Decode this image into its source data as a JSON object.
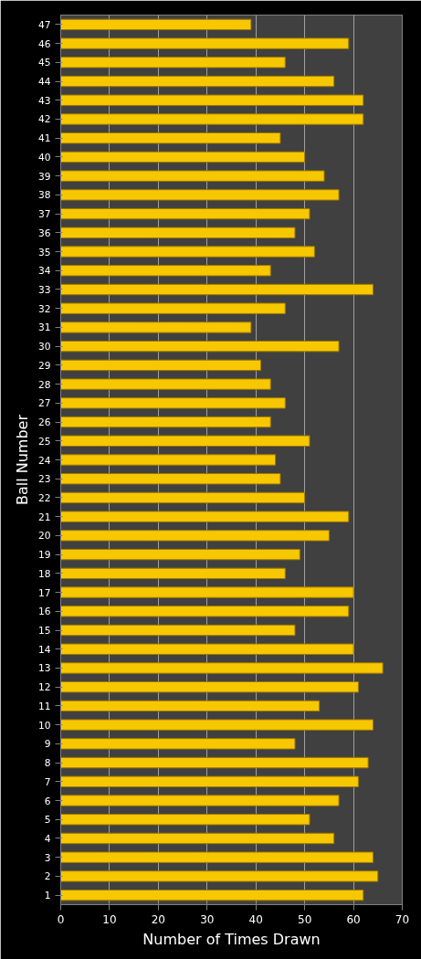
{
  "chart_data": {
    "type": "bar",
    "orientation": "horizontal",
    "xlabel": "Number of Times Drawn",
    "ylabel": "Ball Number",
    "categories": [
      "47",
      "46",
      "45",
      "44",
      "43",
      "42",
      "41",
      "40",
      "39",
      "38",
      "37",
      "36",
      "35",
      "34",
      "33",
      "32",
      "31",
      "30",
      "29",
      "28",
      "27",
      "26",
      "25",
      "24",
      "23",
      "22",
      "21",
      "20",
      "19",
      "18",
      "17",
      "16",
      "15",
      "14",
      "13",
      "12",
      "11",
      "10",
      "9",
      "8",
      "7",
      "6",
      "5",
      "4",
      "3",
      "2",
      "1"
    ],
    "values": [
      39,
      59,
      46,
      56,
      62,
      62,
      45,
      50,
      54,
      57,
      51,
      48,
      52,
      43,
      64,
      46,
      39,
      57,
      41,
      43,
      46,
      43,
      51,
      44,
      45,
      50,
      59,
      55,
      49,
      46,
      60,
      59,
      48,
      60,
      66,
      61,
      53,
      64,
      48,
      63,
      61,
      57,
      51,
      56,
      64,
      65,
      62
    ],
    "color": "#f7c800",
    "xlim": [
      0,
      70
    ],
    "xticks": [
      0,
      10,
      20,
      30,
      40,
      50,
      60,
      70
    ],
    "grid": "x"
  }
}
